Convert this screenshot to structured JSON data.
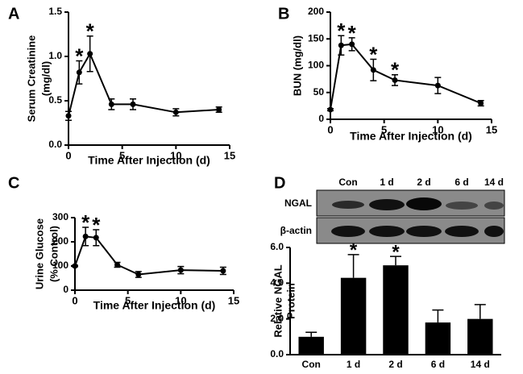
{
  "chart_data": [
    {
      "type": "line",
      "panel_label": "A",
      "ylabel": [
        "Serum Creatinine",
        "(mg/dl)"
      ],
      "xlabel": "Time After Injection (d)",
      "x": [
        0,
        1,
        2,
        4,
        6,
        10,
        14
      ],
      "values": [
        0.33,
        0.82,
        1.03,
        0.46,
        0.46,
        0.37,
        0.4
      ],
      "errors": [
        0.05,
        0.13,
        0.2,
        0.06,
        0.06,
        0.04,
        0.03
      ],
      "significance": [
        null,
        "*",
        "*",
        null,
        null,
        null,
        null
      ],
      "color": "#000000",
      "xlim": [
        0,
        15
      ],
      "xticks": [
        0,
        5,
        10,
        15
      ],
      "ylim": [
        0,
        1.5
      ],
      "yticks": [
        {
          "value": 0,
          "label": "0.0"
        },
        0.5,
        {
          "value": 1,
          "label": "1.0"
        },
        1.5
      ]
    },
    {
      "type": "line",
      "panel_label": "B",
      "ylabel": [
        "BUN (mg/dl)"
      ],
      "xlabel": "Time After Injection (d)",
      "x": [
        0,
        1,
        2,
        4,
        6,
        10,
        14
      ],
      "values": [
        18,
        138,
        140,
        92,
        73,
        63,
        30
      ],
      "errors": [
        2,
        18,
        12,
        20,
        10,
        15,
        5
      ],
      "significance": [
        null,
        "*",
        "*",
        "*",
        "*",
        null,
        null
      ],
      "color": "#000000",
      "xlim": [
        0,
        15
      ],
      "xticks": [
        0,
        5,
        10,
        15
      ],
      "ylim": [
        0,
        200
      ],
      "yticks": [
        0,
        50,
        100,
        150,
        200
      ]
    },
    {
      "type": "line",
      "panel_label": "C",
      "ylabel": [
        "Urine Glucose",
        "(% Control)"
      ],
      "xlabel": "Time After Injection (d)",
      "x": [
        0,
        1,
        2,
        4,
        6,
        10,
        14
      ],
      "values": [
        100,
        222,
        217,
        105,
        65,
        83,
        80
      ],
      "errors": [
        3,
        38,
        33,
        10,
        12,
        15,
        15
      ],
      "significance": [
        null,
        "*",
        "*",
        null,
        null,
        null,
        null
      ],
      "color": "#000000",
      "xlim": [
        0,
        15
      ],
      "xticks": [
        0,
        5,
        10,
        15
      ],
      "ylim": [
        0,
        300
      ],
      "yticks": [
        0,
        100,
        200,
        300
      ]
    },
    {
      "type": "bar",
      "panel_label": "D",
      "ylabel": [
        "Relative NGAL",
        "Protein"
      ],
      "blot_rows": [
        "NGAL",
        "β-actin"
      ],
      "categories": [
        "Con",
        "1 d",
        "2 d",
        "6 d",
        "14 d"
      ],
      "values": [
        1.0,
        4.3,
        5.0,
        1.8,
        2.0
      ],
      "errors": [
        0.25,
        1.3,
        0.5,
        0.7,
        0.8
      ],
      "significance": [
        null,
        "*",
        "*",
        null,
        null
      ],
      "color": "#000000",
      "ylim": [
        0,
        6
      ],
      "yticks": [
        {
          "value": 0,
          "label": "0.0"
        },
        {
          "value": 2,
          "label": "2.0"
        },
        {
          "value": 4,
          "label": "4.0"
        },
        {
          "value": 6,
          "label": "6.0"
        }
      ]
    }
  ]
}
